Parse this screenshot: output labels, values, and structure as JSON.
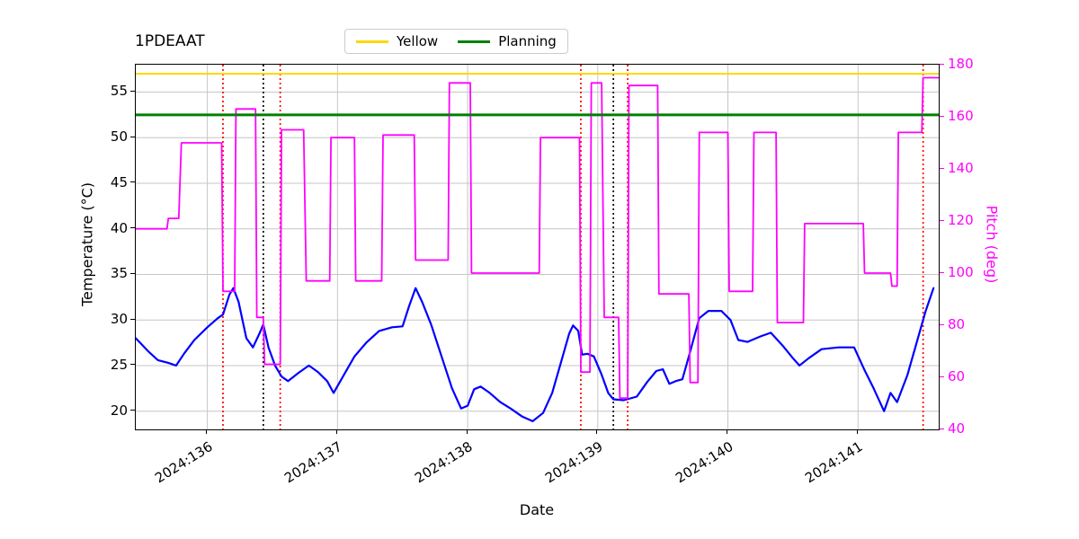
{
  "figure": {
    "title": "1PDEAAT"
  },
  "legend": {
    "items": [
      {
        "label": "Yellow",
        "color": "#ffd700"
      },
      {
        "label": "Planning",
        "color": "#008000"
      }
    ]
  },
  "chart_data": {
    "type": "line",
    "title": "1PDEAAT",
    "xlabel": "Date",
    "ylabel": "Temperature (°C)",
    "ylabel_right": "Pitch (deg)",
    "grid": true,
    "legend_position": "upper center",
    "xlim": [
      135.45,
      141.62
    ],
    "ylim_left": [
      18,
      58
    ],
    "ylim_right": [
      40,
      180
    ],
    "x_ticks": [
      136,
      137,
      138,
      139,
      140,
      141
    ],
    "x_tick_labels": [
      "2024:136",
      "2024:137",
      "2024:138",
      "2024:139",
      "2024:140",
      "2024:141"
    ],
    "y_ticks_left": [
      20,
      25,
      30,
      35,
      40,
      45,
      50,
      55
    ],
    "y_ticks_right": [
      40,
      60,
      80,
      100,
      120,
      140,
      160,
      180
    ],
    "hlines": [
      {
        "name": "Yellow",
        "value": 57.0,
        "axis": "left",
        "color": "#ffd700",
        "width": 2
      },
      {
        "name": "Planning",
        "value": 52.5,
        "axis": "left",
        "color": "#008000",
        "width": 3
      }
    ],
    "vlines": [
      {
        "x": 136.12,
        "color": "#ff0000",
        "style": "dotted"
      },
      {
        "x": 136.43,
        "color": "#000000",
        "style": "dotted"
      },
      {
        "x": 136.56,
        "color": "#ff0000",
        "style": "dotted"
      },
      {
        "x": 138.87,
        "color": "#ff0000",
        "style": "dotted"
      },
      {
        "x": 139.12,
        "color": "#000000",
        "style": "dotted"
      },
      {
        "x": 139.23,
        "color": "#ff0000",
        "style": "dotted"
      },
      {
        "x": 141.5,
        "color": "#ff0000",
        "style": "dotted"
      }
    ],
    "series": [
      {
        "name": "Temperature",
        "axis": "left",
        "color": "#0000ff",
        "width": 2.2,
        "x": [
          135.45,
          135.55,
          135.62,
          135.7,
          135.76,
          135.82,
          135.9,
          136.0,
          136.08,
          136.12,
          136.17,
          136.2,
          136.24,
          136.3,
          136.35,
          136.4,
          136.43,
          136.47,
          136.52,
          136.57,
          136.62,
          136.7,
          136.78,
          136.85,
          136.92,
          136.97,
          137.05,
          137.13,
          137.22,
          137.32,
          137.42,
          137.5,
          137.55,
          137.6,
          137.65,
          137.72,
          137.8,
          137.88,
          137.95,
          138.0,
          138.05,
          138.1,
          138.17,
          138.25,
          138.33,
          138.42,
          138.5,
          138.58,
          138.65,
          138.72,
          138.78,
          138.81,
          138.85,
          138.88,
          138.92,
          138.97,
          139.03,
          139.08,
          139.12,
          139.2,
          139.3,
          139.38,
          139.45,
          139.5,
          139.55,
          139.6,
          139.65,
          139.7,
          139.78,
          139.85,
          139.95,
          140.02,
          140.08,
          140.15,
          140.25,
          140.33,
          140.42,
          140.5,
          140.55,
          140.62,
          140.72,
          140.85,
          140.97,
          141.05,
          141.12,
          141.2,
          141.25,
          141.3,
          141.38,
          141.45,
          141.52,
          141.58
        ],
        "y": [
          28.0,
          26.5,
          25.6,
          25.3,
          25.0,
          26.3,
          27.8,
          29.2,
          30.2,
          30.6,
          32.8,
          33.5,
          32.0,
          28.0,
          27.0,
          28.5,
          29.5,
          27.0,
          25.0,
          23.8,
          23.3,
          24.2,
          25.0,
          24.3,
          23.3,
          22.0,
          24.0,
          26.0,
          27.5,
          28.8,
          29.2,
          29.3,
          31.5,
          33.5,
          32.0,
          29.5,
          26.0,
          22.5,
          20.3,
          20.6,
          22.4,
          22.7,
          22.0,
          21.0,
          20.3,
          19.4,
          18.9,
          19.8,
          22.0,
          25.5,
          28.5,
          29.4,
          28.8,
          26.2,
          26.3,
          26.0,
          24.0,
          22.0,
          21.3,
          21.2,
          21.6,
          23.2,
          24.4,
          24.6,
          23.0,
          23.3,
          23.5,
          26.0,
          30.2,
          31.0,
          31.0,
          30.0,
          27.8,
          27.6,
          28.2,
          28.6,
          27.2,
          25.8,
          25.0,
          25.8,
          26.8,
          27.0,
          27.0,
          24.5,
          22.5,
          20.0,
          22.0,
          21.0,
          24.0,
          27.5,
          31.0,
          33.5
        ]
      },
      {
        "name": "Pitch",
        "axis": "right",
        "color": "#ff00ff",
        "width": 1.8,
        "x": [
          135.45,
          135.69,
          135.7,
          135.78,
          135.8,
          136.11,
          136.12,
          136.21,
          136.22,
          136.37,
          136.38,
          136.43,
          136.44,
          136.56,
          136.57,
          136.74,
          136.76,
          136.94,
          136.95,
          137.13,
          137.14,
          137.34,
          137.35,
          137.59,
          137.6,
          137.85,
          137.86,
          138.02,
          138.03,
          138.55,
          138.56,
          138.86,
          138.87,
          138.94,
          138.95,
          139.03,
          139.05,
          139.16,
          139.17,
          139.23,
          139.24,
          139.46,
          139.47,
          139.7,
          139.71,
          139.77,
          139.78,
          140.0,
          140.01,
          140.19,
          140.2,
          140.37,
          140.38,
          140.58,
          140.59,
          141.04,
          141.05,
          141.25,
          141.26,
          141.3,
          141.31,
          141.49,
          141.5,
          141.62
        ],
        "y": [
          117,
          117,
          121,
          121,
          150,
          150,
          93,
          93,
          163,
          163,
          83,
          83,
          65,
          65,
          155,
          155,
          97,
          97,
          152,
          152,
          97,
          97,
          153,
          153,
          105,
          105,
          173,
          173,
          100,
          100,
          152,
          152,
          62,
          62,
          173,
          173,
          83,
          83,
          52,
          52,
          172,
          172,
          92,
          92,
          58,
          58,
          154,
          154,
          93,
          93,
          154,
          154,
          81,
          81,
          119,
          119,
          100,
          100,
          95,
          95,
          154,
          154,
          175,
          175
        ]
      }
    ]
  }
}
